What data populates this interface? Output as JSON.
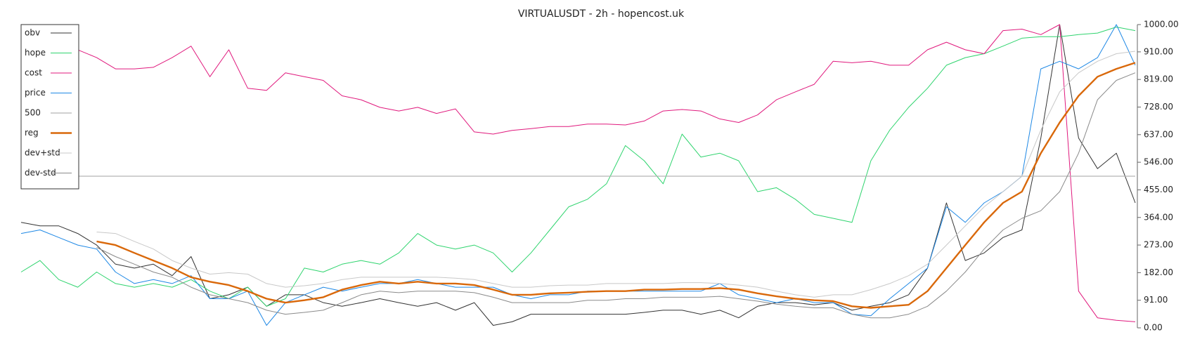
{
  "chart_data": {
    "type": "line",
    "title": "VIRTUALUSDT - 2h - hopencost.uk",
    "ylim": [
      0,
      1000
    ],
    "yticks": [
      {
        "value": 0,
        "label": "0.00"
      },
      {
        "value": 91,
        "label": "91.00"
      },
      {
        "value": 182,
        "label": "182.00"
      },
      {
        "value": 273,
        "label": "273.00"
      },
      {
        "value": 364,
        "label": "364.00"
      },
      {
        "value": 455,
        "label": "455.00"
      },
      {
        "value": 546,
        "label": "546.00"
      },
      {
        "value": 637,
        "label": "637.00"
      },
      {
        "value": 728,
        "label": "728.00"
      },
      {
        "value": 819,
        "label": "819.00"
      },
      {
        "value": 910,
        "label": "910.00"
      },
      {
        "value": 1000,
        "label": "1000.00"
      }
    ],
    "legend": "upper left",
    "series": [
      {
        "name": "obv",
        "color": "#333333",
        "width": 1,
        "values": [
          348,
          336,
          336,
          311,
          273,
          210,
          197,
          210,
          172,
          235,
          96,
          109,
          134,
          71,
          109,
          109,
          83,
          71,
          83,
          96,
          83,
          71,
          83,
          58,
          83,
          8,
          20,
          45,
          45,
          45,
          45,
          45,
          45,
          51,
          58,
          58,
          45,
          58,
          33,
          71,
          83,
          83,
          76,
          83,
          58,
          71,
          83,
          109,
          197,
          412,
          222,
          247,
          298,
          323,
          626,
          1000,
          626,
          525,
          576,
          412
        ]
      },
      {
        "name": "hope",
        "color": "#2fd46e",
        "width": 1,
        "values": [
          184,
          222,
          159,
          134,
          184,
          146,
          134,
          146,
          134,
          159,
          121,
          96,
          134,
          71,
          96,
          197,
          184,
          210,
          222,
          210,
          247,
          311,
          273,
          260,
          273,
          247,
          184,
          247,
          323,
          399,
          424,
          475,
          601,
          551,
          475,
          639,
          563,
          576,
          551,
          449,
          462,
          424,
          374,
          361,
          348,
          551,
          652,
          727,
          790,
          866,
          891,
          904,
          929,
          955,
          960,
          960,
          967,
          972,
          992,
          980
        ]
      },
      {
        "name": "cost",
        "color": "#e0197d",
        "width": 1,
        "values": [
          null,
          null,
          null,
          917,
          891,
          854,
          854,
          859,
          891,
          929,
          828,
          917,
          790,
          783,
          841,
          828,
          816,
          765,
          752,
          727,
          715,
          727,
          707,
          722,
          646,
          639,
          651,
          657,
          664,
          664,
          672,
          672,
          669,
          682,
          715,
          720,
          715,
          689,
          677,
          702,
          752,
          778,
          803,
          879,
          874,
          879,
          866,
          866,
          917,
          942,
          917,
          904,
          980,
          985,
          967,
          1000,
          121,
          33,
          25,
          20
        ]
      },
      {
        "name": "price",
        "color": "#1e88e5",
        "width": 1,
        "values": [
          311,
          323,
          298,
          273,
          260,
          184,
          146,
          159,
          146,
          172,
          96,
          96,
          121,
          8,
          83,
          109,
          134,
          121,
          134,
          146,
          146,
          159,
          146,
          134,
          134,
          134,
          109,
          96,
          109,
          109,
          121,
          121,
          121,
          121,
          121,
          121,
          121,
          146,
          109,
          96,
          83,
          96,
          83,
          83,
          45,
          40,
          96,
          146,
          197,
          399,
          348,
          412,
          449,
          500,
          854,
          879,
          854,
          891,
          1000,
          866
        ]
      },
      {
        "name": "500",
        "color": "#b4b4b4",
        "width": 1.2,
        "values": [
          500,
          500,
          500,
          500,
          500,
          500,
          500,
          500,
          500,
          500,
          500,
          500,
          500,
          500,
          500,
          500,
          500,
          500,
          500,
          500,
          500,
          500,
          500,
          500,
          500,
          500,
          500,
          500,
          500,
          500,
          500,
          500,
          500,
          500,
          500,
          500,
          500,
          500,
          500,
          500,
          500,
          500,
          500,
          500,
          500,
          500,
          500,
          500,
          500,
          500,
          500,
          500,
          500,
          500,
          500,
          500,
          500,
          500,
          500,
          500
        ]
      },
      {
        "name": "reg",
        "color": "#d9680a",
        "width": 2.4,
        "values": [
          null,
          null,
          null,
          null,
          285,
          273,
          247,
          222,
          197,
          167,
          152,
          141,
          121,
          96,
          83,
          91,
          101,
          126,
          141,
          152,
          146,
          152,
          146,
          146,
          141,
          126,
          109,
          109,
          114,
          116,
          119,
          121,
          121,
          126,
          126,
          128,
          128,
          131,
          126,
          114,
          104,
          96,
          91,
          88,
          71,
          66,
          71,
          76,
          121,
          197,
          273,
          348,
          412,
          449,
          576,
          677,
          765,
          828,
          854,
          874
        ]
      },
      {
        "name": "dev+std",
        "color": "#c8c8c8",
        "width": 1,
        "values": [
          null,
          null,
          null,
          null,
          316,
          311,
          285,
          260,
          222,
          197,
          177,
          182,
          177,
          146,
          134,
          139,
          146,
          159,
          167,
          167,
          167,
          167,
          167,
          164,
          159,
          146,
          134,
          134,
          139,
          141,
          141,
          146,
          146,
          146,
          146,
          149,
          149,
          146,
          141,
          134,
          121,
          109,
          101,
          109,
          109,
          126,
          146,
          172,
          210,
          273,
          336,
          399,
          449,
          500,
          652,
          778,
          841,
          879,
          904,
          912
        ]
      },
      {
        "name": "dev-std",
        "color": "#8a8a8a",
        "width": 1,
        "values": [
          null,
          null,
          null,
          null,
          265,
          235,
          210,
          184,
          167,
          134,
          109,
          96,
          83,
          58,
          45,
          51,
          58,
          83,
          109,
          121,
          116,
          121,
          121,
          121,
          116,
          101,
          83,
          83,
          83,
          83,
          91,
          91,
          96,
          96,
          101,
          101,
          101,
          104,
          96,
          88,
          78,
          71,
          66,
          66,
          45,
          33,
          33,
          45,
          71,
          121,
          184,
          260,
          323,
          361,
          386,
          449,
          576,
          752,
          816,
          841
        ]
      }
    ]
  }
}
